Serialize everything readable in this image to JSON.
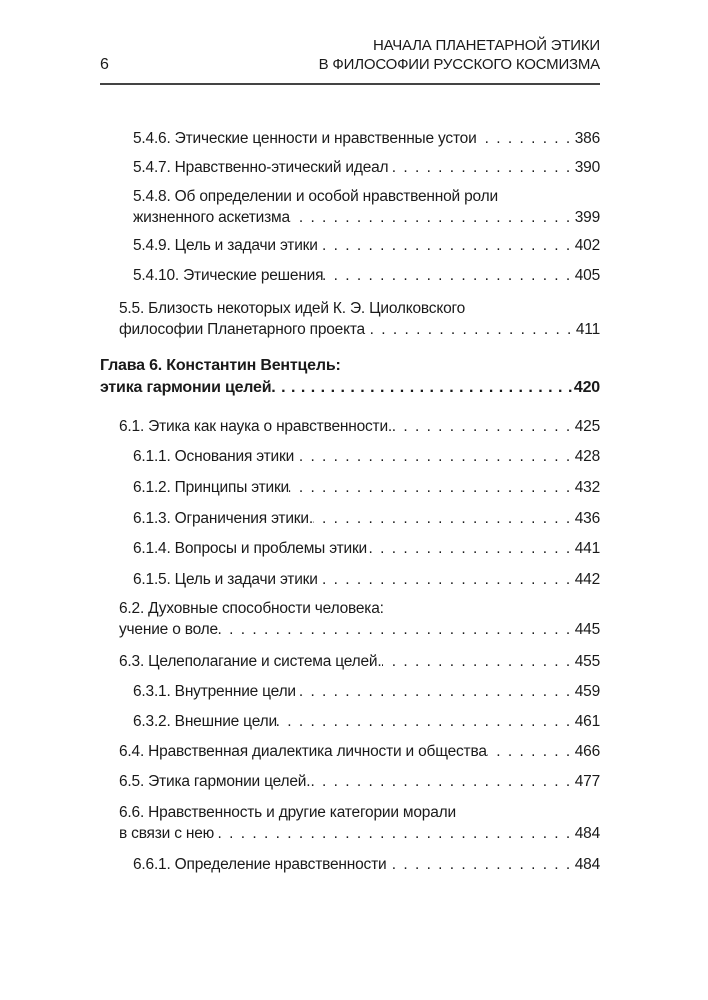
{
  "header": {
    "page_number": "6",
    "title_line1": "НАЧАЛА ПЛАНЕТАРНОЙ ЭТИКИ",
    "title_line2": "В ФИЛОСОФИИ РУССКОГО КОСМИЗМА"
  },
  "toc": [
    {
      "level": 3,
      "text": "5.4.6. Этические ценности и нравственные устои",
      "page": "386"
    },
    {
      "level": 3,
      "text": "5.4.7. Нравственно-этический идеал",
      "page": "390"
    },
    {
      "level": 3,
      "text": "5.4.8. Об определении и особой нравственной роли",
      "text2": "жизненного аскетизма",
      "page": "399"
    },
    {
      "level": 3,
      "text": "5.4.9. Цель и задачи этики",
      "page": "402"
    },
    {
      "level": 3,
      "text": "5.4.10. Этические решения",
      "page": "405"
    },
    {
      "level": 2,
      "text": "5.5. Близость некоторых идей К. Э. Циолковского",
      "text2": "философии Планетарного проекта",
      "page": "411"
    },
    {
      "level": 1,
      "text": "Глава 6. Константин Вентцель:",
      "text2": "этика гармонии целей",
      "page": "420"
    },
    {
      "level": 2,
      "text": "6.1. Этика как наука о нравственности.",
      "page": "425"
    },
    {
      "level": 3,
      "text": "6.1.1. Основания этики",
      "page": "428"
    },
    {
      "level": 3,
      "text": "6.1.2. Принципы этики",
      "page": "432"
    },
    {
      "level": 3,
      "text": "6.1.3. Ограничения этики.",
      "page": "436"
    },
    {
      "level": 3,
      "text": "6.1.4. Вопросы и проблемы этики",
      "page": "441"
    },
    {
      "level": 3,
      "text": "6.1.5. Цель и задачи этики",
      "page": "442"
    },
    {
      "level": 2,
      "text": "6.2. Духовные способности человека:",
      "text2": "учение о воле",
      "page": "445"
    },
    {
      "level": 2,
      "text": "6.3. Целеполагание и система целей.",
      "page": "455"
    },
    {
      "level": 3,
      "text": "6.3.1. Внутренние цели",
      "page": "459"
    },
    {
      "level": 3,
      "text": "6.3.2. Внешние цели",
      "page": "461"
    },
    {
      "level": 2,
      "text": "6.4. Нравственная диалектика личности и общества",
      "page": "466"
    },
    {
      "level": 2,
      "text": "6.5. Этика гармонии целей.",
      "page": "477"
    },
    {
      "level": 2,
      "text": "6.6. Нравственность и другие категории морали",
      "text2": "в связи с нею",
      "page": "484"
    },
    {
      "level": 3,
      "text": "6.6.1. Определение нравственности",
      "page": "484"
    }
  ]
}
